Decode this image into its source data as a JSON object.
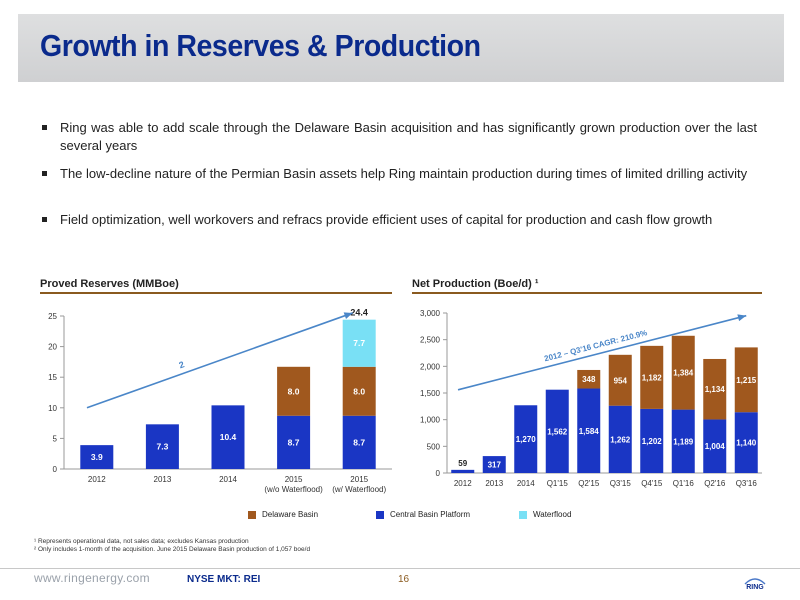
{
  "title": "Growth in Reserves & Production",
  "bullets": [
    "Ring was able to add scale through the Delaware Basin acquisition and has significantly grown production over the last several years",
    "The low-decline nature of the Permian Basin assets help Ring maintain production during times of limited drilling activity",
    "Field optimization, well workovers and refracs provide efficient uses of capital for production and cash flow growth"
  ],
  "legend": {
    "items": [
      "Delaware Basin",
      "Central Basin Platform",
      "Waterflood"
    ],
    "colors": [
      "#a0581e",
      "#1a36c4",
      "#79e0f5"
    ]
  },
  "footnotes": [
    "¹ Represents operational data, not sales data; excludes Kansas production",
    "² Only includes 1-month of the acquisition. June 2015 Delaware Basin production of 1,057 boe/d"
  ],
  "footer": {
    "url": "www.ringenergy.com",
    "ticker": "NYSE MKT: REI",
    "page": "16",
    "logo": "RING"
  },
  "chart_data": [
    {
      "type": "bar",
      "stacked": true,
      "title": "Proved Reserves (MMBoe)",
      "categories": [
        "2012",
        "2013",
        "2014",
        "2015 (w/o Waterflood)",
        "2015 (w/ Waterflood)"
      ],
      "series": [
        {
          "name": "Central Basin Platform",
          "color": "#1a36c4",
          "values": [
            3.9,
            7.3,
            10.4,
            8.7,
            8.7
          ],
          "labels": [
            "3.9",
            "7.3",
            "10.4",
            "8.7",
            "8.7"
          ]
        },
        {
          "name": "Delaware Basin",
          "color": "#a0581e",
          "values": [
            0,
            0,
            0,
            8.0,
            8.0
          ],
          "labels": [
            "",
            "",
            "",
            "8.0",
            "8.0"
          ]
        },
        {
          "name": "Waterflood",
          "color": "#79e0f5",
          "values": [
            0,
            0,
            0,
            0,
            7.7
          ],
          "labels": [
            "",
            "",
            "",
            "",
            "7.7"
          ]
        }
      ],
      "totals": [
        "",
        "",
        "",
        "",
        "24.4"
      ],
      "ylim": [
        0,
        25
      ],
      "yticks": [
        0,
        5,
        10,
        15,
        20,
        25
      ],
      "ytick_labels": [
        "0",
        "5",
        "10",
        "15",
        "20",
        "25"
      ],
      "annotation": "2",
      "grid": false
    },
    {
      "type": "bar",
      "stacked": true,
      "title": "Net Production (Boe/d) ¹",
      "categories": [
        "2012",
        "2013",
        "2014",
        "Q1'15",
        "Q2'15",
        "Q3'15",
        "Q4'15",
        "Q1'16",
        "Q2'16",
        "Q3'16"
      ],
      "series": [
        {
          "name": "Central Basin Platform",
          "color": "#1a36c4",
          "values": [
            59,
            317,
            1270,
            1562,
            1584,
            1262,
            1202,
            1189,
            1004,
            1140
          ],
          "labels": [
            "59",
            "317",
            "1,270",
            "1,562",
            "1,584",
            "1,262",
            "1,202",
            "1,189",
            "1,004",
            "1,140"
          ]
        },
        {
          "name": "Delaware Basin",
          "color": "#a0581e",
          "values": [
            0,
            0,
            0,
            0,
            348,
            954,
            1182,
            1384,
            1134,
            1215
          ],
          "labels": [
            "",
            "",
            "",
            "",
            "348",
            "954",
            "1,182",
            "1,384",
            "1,134",
            "1,215"
          ]
        }
      ],
      "ylim": [
        0,
        3000
      ],
      "yticks": [
        0,
        500,
        1000,
        1500,
        2000,
        2500,
        3000
      ],
      "ytick_labels": [
        "0",
        "500",
        "1,000",
        "1,500",
        "2,000",
        "2,500",
        "3,000"
      ],
      "annotation": "2012 – Q3'16 CAGR: 210.9%",
      "grid": false
    }
  ]
}
